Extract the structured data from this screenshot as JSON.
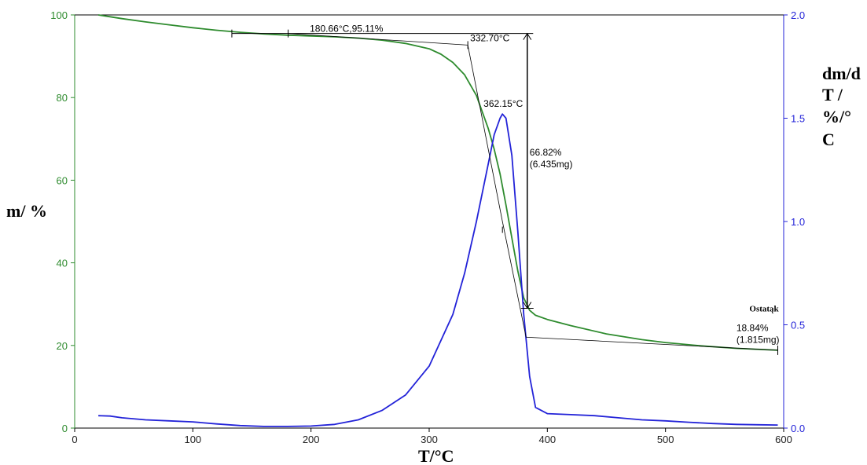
{
  "chart_data": {
    "type": "line",
    "xlabel": "T/°C",
    "ylabel_left": "m/ %",
    "ylabel_right_lines": [
      "dm/d",
      "T /",
      "%/°",
      "C"
    ],
    "xlim": [
      0,
      600
    ],
    "ylim_left": [
      0,
      100
    ],
    "ylim_right": [
      0,
      2.0
    ],
    "x_ticks": [
      "0",
      "100",
      "200",
      "300",
      "400",
      "500",
      "600"
    ],
    "y_left_ticks": [
      "0",
      "20",
      "40",
      "60",
      "80",
      "100"
    ],
    "y_right_ticks": [
      "0.0",
      "0.5",
      "1.0",
      "1.5",
      "2.0"
    ],
    "grid": false,
    "colors": {
      "mass": "#2e8b2e",
      "dtg": "#2323d8",
      "annotation": "#000000"
    },
    "series": [
      {
        "axis": "left",
        "x": [
          20,
          40,
          60,
          80,
          100,
          120,
          140,
          160,
          180,
          200,
          220,
          240,
          260,
          280,
          300,
          310,
          320,
          330,
          340,
          350,
          355,
          360,
          365,
          370,
          375,
          380,
          385,
          390,
          400,
          420,
          450,
          480,
          500,
          530,
          560,
          595
        ],
        "y": [
          100,
          99.1,
          98.3,
          97.6,
          96.9,
          96.3,
          95.8,
          95.4,
          95.1,
          94.9,
          94.7,
          94.4,
          93.9,
          93.1,
          91.8,
          90.5,
          88.5,
          85.5,
          80.5,
          72.5,
          67.5,
          61.5,
          54,
          46,
          38,
          31.5,
          28.5,
          27.3,
          26.3,
          24.8,
          22.8,
          21.4,
          20.7,
          19.9,
          19.3,
          18.84
        ]
      },
      {
        "axis": "right",
        "x": [
          20,
          30,
          40,
          60,
          80,
          100,
          120,
          140,
          160,
          180,
          200,
          220,
          240,
          260,
          280,
          300,
          320,
          330,
          340,
          350,
          355,
          360,
          362,
          365,
          370,
          375,
          380,
          385,
          390,
          400,
          420,
          440,
          460,
          480,
          500,
          520,
          540,
          560,
          580,
          595
        ],
        "y": [
          0.06,
          0.058,
          0.05,
          0.04,
          0.035,
          0.03,
          0.02,
          0.012,
          0.008,
          0.008,
          0.01,
          0.018,
          0.04,
          0.085,
          0.16,
          0.3,
          0.55,
          0.75,
          1.0,
          1.28,
          1.42,
          1.5,
          1.52,
          1.5,
          1.32,
          0.95,
          0.55,
          0.25,
          0.1,
          0.07,
          0.065,
          0.06,
          0.05,
          0.04,
          0.035,
          0.028,
          0.022,
          0.018,
          0.016,
          0.015
        ]
      }
    ],
    "annotations": [
      {
        "id": "onset",
        "text": "180.66°C,95.11%",
        "x": 180.66,
        "y": 95.11
      },
      {
        "id": "endset",
        "text": "332.70°C",
        "x": 332.7,
        "y": 92.7
      },
      {
        "id": "peak",
        "text": "362.15°C",
        "x": 362.15,
        "y": 80
      },
      {
        "id": "loss",
        "text": "66.82%",
        "subtext": "(6.435mg)"
      },
      {
        "id": "residue_label",
        "text": "Ostatąk"
      },
      {
        "id": "residue",
        "text": "18.84%",
        "subtext": "(1.815mg)",
        "x": 595,
        "y": 18.84
      }
    ]
  }
}
